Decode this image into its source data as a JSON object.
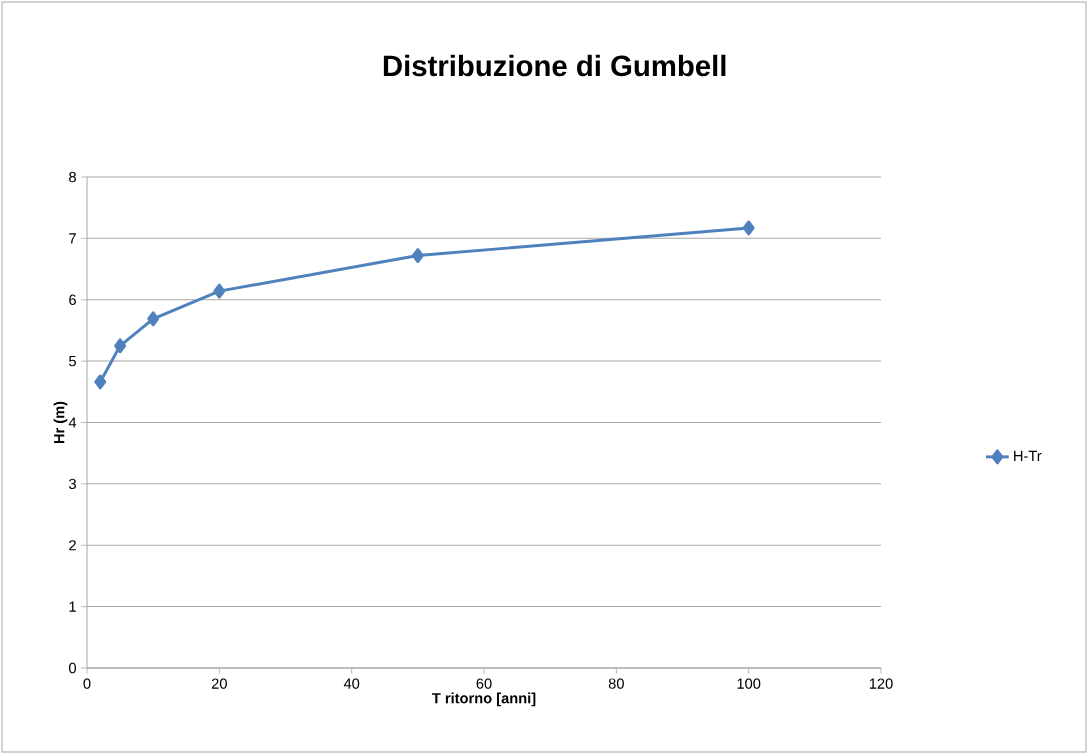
{
  "chart_data": {
    "type": "line",
    "title": "Distribuzione di Gumbell",
    "xlabel": "T ritorno [anni]",
    "ylabel": "Hr (m)",
    "x": [
      2,
      5,
      10,
      20,
      50,
      100
    ],
    "series": [
      {
        "name": "H-Tr",
        "color": "#4f81bd",
        "values": [
          4.66,
          5.25,
          5.69,
          6.14,
          6.72,
          7.17
        ]
      }
    ],
    "xlim": [
      0,
      120
    ],
    "xticks": [
      0,
      20,
      40,
      60,
      80,
      100,
      120
    ],
    "ylim": [
      0,
      8
    ],
    "yticks": [
      0,
      1,
      2,
      3,
      4,
      5,
      6,
      7,
      8
    ],
    "grid": "y",
    "legend": "right",
    "marker": "diamond",
    "line_style": "solid"
  }
}
